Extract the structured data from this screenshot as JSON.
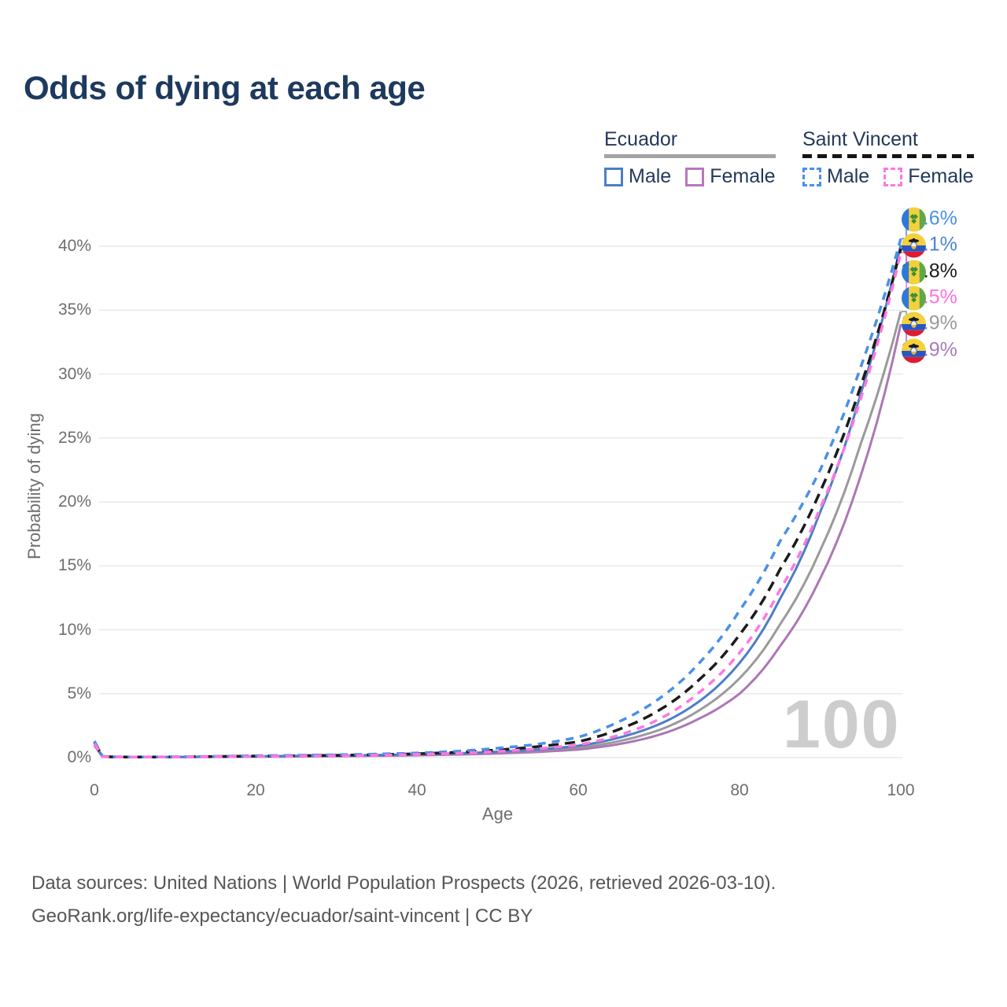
{
  "title": "Odds of dying at each age",
  "legend": {
    "groups": [
      {
        "name": "Ecuador",
        "line_style": "solid",
        "underline_color": "#a3a3a3",
        "items": [
          {
            "label": "Male",
            "color": "#4b7fc4",
            "dashed": false
          },
          {
            "label": "Female",
            "color": "#b678bc",
            "dashed": false
          }
        ]
      },
      {
        "name": "Saint Vincent",
        "line_style": "dashed",
        "underline_color": "#151515",
        "items": [
          {
            "label": "Male",
            "color": "#4a90e8",
            "dashed": true
          },
          {
            "label": "Female",
            "color": "#ff77e2",
            "dashed": true
          }
        ]
      }
    ]
  },
  "axes": {
    "x": {
      "label": "Age",
      "ticks": [
        "0",
        "20",
        "40",
        "60",
        "80",
        "100"
      ],
      "range": [
        0,
        100
      ]
    },
    "y": {
      "label": "Probability of dying",
      "ticks": [
        "0%",
        "5%",
        "10%",
        "15%",
        "20%",
        "25%",
        "30%",
        "35%",
        "40%"
      ],
      "range_pct": [
        0,
        40
      ],
      "grid": true
    }
  },
  "watermark": "100",
  "chart_data": {
    "type": "line",
    "title": "Odds of dying at each age",
    "xlabel": "Age",
    "ylabel": "Probability of dying",
    "x": [
      0,
      1,
      2,
      5,
      10,
      15,
      20,
      25,
      30,
      35,
      40,
      45,
      50,
      55,
      60,
      65,
      70,
      75,
      80,
      85,
      90,
      95,
      100
    ],
    "legend_position": "top-right",
    "series": [
      {
        "name": "Saint Vincent Male",
        "country": "saint-vincent",
        "sex": "male",
        "color": "#4a90e8",
        "label_color": "#4a90e8",
        "dashed": true,
        "end_label": "40.6%",
        "values_pct": [
          1.3,
          0.1,
          0.07,
          0.05,
          0.06,
          0.1,
          0.15,
          0.18,
          0.22,
          0.28,
          0.36,
          0.5,
          0.74,
          1.05,
          1.6,
          2.8,
          4.6,
          7.4,
          11.5,
          16.9,
          22.5,
          30.5,
          40.6
        ]
      },
      {
        "name": "Ecuador Male",
        "country": "ecuador",
        "sex": "male",
        "color": "#4b7fc4",
        "label_color": "#4a86d4",
        "dashed": false,
        "end_label": "40.1%",
        "values_pct": [
          1.1,
          0.08,
          0.055,
          0.04,
          0.05,
          0.08,
          0.11,
          0.13,
          0.16,
          0.2,
          0.25,
          0.33,
          0.46,
          0.64,
          0.92,
          1.55,
          2.6,
          4.4,
          7.4,
          12.4,
          19.2,
          28.4,
          40.1
        ]
      },
      {
        "name": "Saint Vincent (both sexes)",
        "country": "saint-vincent",
        "sex": "both",
        "color": "#1b1b1b",
        "label_color": "#1b1b1b",
        "dashed": true,
        "end_label": "39.8%",
        "values_pct": [
          1.2,
          0.09,
          0.06,
          0.045,
          0.055,
          0.09,
          0.12,
          0.15,
          0.18,
          0.23,
          0.3,
          0.42,
          0.6,
          0.86,
          1.25,
          2.2,
          3.7,
          6.1,
          9.6,
          14.7,
          20.8,
          29.0,
          39.8
        ]
      },
      {
        "name": "Saint Vincent Female",
        "country": "saint-vincent",
        "sex": "female",
        "color": "#ff77e2",
        "label_color": "#ff70e0",
        "dashed": true,
        "end_label": "39.5%",
        "values_pct": [
          1.1,
          0.08,
          0.055,
          0.04,
          0.05,
          0.07,
          0.09,
          0.12,
          0.15,
          0.19,
          0.25,
          0.34,
          0.48,
          0.7,
          1.0,
          1.75,
          3.0,
          5.1,
          8.2,
          13.1,
          19.5,
          28.0,
          39.5
        ]
      },
      {
        "name": "Ecuador (both sexes)",
        "country": "ecuador",
        "sex": "both",
        "color": "#9a9a9a",
        "label_color": "#9a9a9a",
        "dashed": false,
        "end_label": "34.9%",
        "values_pct": [
          1.0,
          0.07,
          0.05,
          0.035,
          0.045,
          0.07,
          0.09,
          0.11,
          0.13,
          0.17,
          0.21,
          0.28,
          0.38,
          0.53,
          0.76,
          1.28,
          2.15,
          3.7,
          6.2,
          10.4,
          16.2,
          24.5,
          34.9
        ]
      },
      {
        "name": "Ecuador Female",
        "country": "ecuador",
        "sex": "female",
        "color": "#ad77b5",
        "label_color": "#a97cb5",
        "dashed": false,
        "end_label": "33.9%",
        "values_pct": [
          0.95,
          0.06,
          0.045,
          0.03,
          0.04,
          0.055,
          0.07,
          0.09,
          0.11,
          0.14,
          0.18,
          0.24,
          0.32,
          0.45,
          0.63,
          1.05,
          1.78,
          3.05,
          5.0,
          8.7,
          14.0,
          22.0,
          33.9
        ]
      }
    ]
  },
  "footer": {
    "line1": "Data sources: United Nations | World Population Prospects (2026, retrieved 2026-03-10).",
    "line2": "GeoRank.org/life-expectancy/ecuador/saint-vincent | CC BY"
  }
}
